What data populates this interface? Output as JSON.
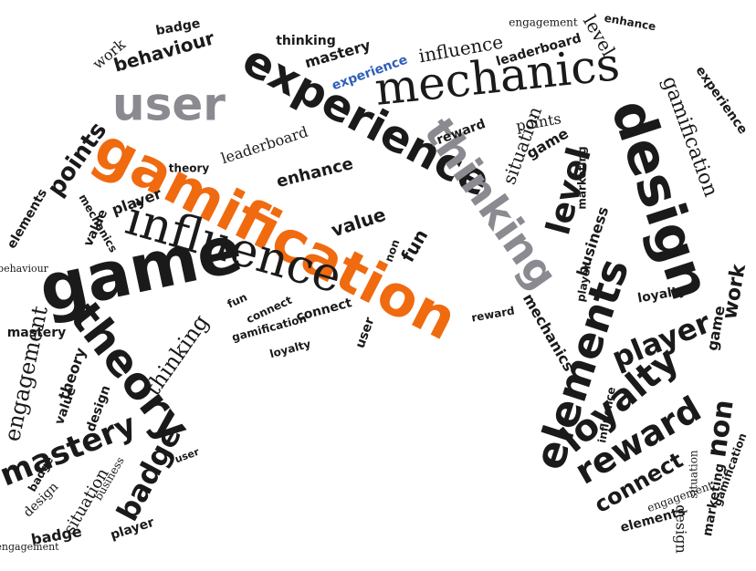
{
  "palette": {
    "background": "#ffffff",
    "dark": "#1a1a1a",
    "gray": "#8a8a90",
    "orange": "#f06a10",
    "blue": "#2e5fb8"
  },
  "words": [
    {
      "id": "gamification-main",
      "text": "gamification",
      "color": "orange"
    },
    {
      "id": "experience-large",
      "text": "experience",
      "color": "dark"
    },
    {
      "id": "mechanics-large",
      "text": "mechanics",
      "color": "dark"
    },
    {
      "id": "user-large",
      "text": "user",
      "color": "gray"
    },
    {
      "id": "game-large",
      "text": "game",
      "color": "dark"
    },
    {
      "id": "influence-large",
      "text": "influence",
      "color": "dark"
    },
    {
      "id": "design-large",
      "text": "design",
      "color": "dark"
    },
    {
      "id": "thinking-large",
      "text": "thinking",
      "color": "gray"
    },
    {
      "id": "theory-large",
      "text": "theory",
      "color": "dark"
    },
    {
      "id": "elements-large",
      "text": "elements",
      "color": "dark"
    },
    {
      "id": "loyalty-large",
      "text": "loyalty",
      "color": "dark"
    },
    {
      "id": "reward-large",
      "text": "reward",
      "color": "dark"
    },
    {
      "id": "player-large",
      "text": "player",
      "color": "dark"
    },
    {
      "id": "level-large",
      "text": "level",
      "color": "dark"
    },
    {
      "id": "mastery-large",
      "text": "mastery",
      "color": "dark"
    },
    {
      "id": "badge-large",
      "text": "badge",
      "color": "dark"
    },
    {
      "id": "engagement-large",
      "text": "engagement",
      "color": "dark"
    },
    {
      "id": "gamification-right",
      "text": "gamification",
      "color": "dark"
    },
    {
      "id": "connect-right",
      "text": "connect",
      "color": "dark"
    },
    {
      "id": "non-right",
      "text": "non",
      "color": "dark"
    },
    {
      "id": "work-right",
      "text": "work",
      "color": "dark"
    },
    {
      "id": "points-left",
      "text": "points",
      "color": "dark"
    },
    {
      "id": "leaderboard-mid",
      "text": "leaderboard",
      "color": "dark"
    },
    {
      "id": "enhance-mid",
      "text": "enhance",
      "color": "dark"
    },
    {
      "id": "value-mid",
      "text": "value",
      "color": "dark"
    },
    {
      "id": "fun-mid",
      "text": "fun",
      "color": "dark"
    },
    {
      "id": "situation-mid",
      "text": "situation",
      "color": "dark"
    },
    {
      "id": "business-right",
      "text": "business",
      "color": "dark"
    },
    {
      "id": "experience-blue",
      "text": "experience",
      "color": "blue"
    },
    {
      "id": "influence-top",
      "text": "influence",
      "color": "dark"
    },
    {
      "id": "behaviour-top",
      "text": "behaviour",
      "color": "dark"
    },
    {
      "id": "badge-top",
      "text": "badge",
      "color": "dark"
    },
    {
      "id": "mastery-top",
      "text": "mastery",
      "color": "dark"
    },
    {
      "id": "thinking-top",
      "text": "thinking",
      "color": "dark"
    },
    {
      "id": "leaderboard-top",
      "text": "leaderboard",
      "color": "dark"
    },
    {
      "id": "engagement-top",
      "text": "engagement",
      "color": "dark"
    },
    {
      "id": "enhance-top",
      "text": "enhance",
      "color": "dark"
    },
    {
      "id": "level-top",
      "text": "level",
      "color": "dark"
    },
    {
      "id": "work-top",
      "text": "work",
      "color": "dark"
    },
    {
      "id": "points-mid",
      "text": "points",
      "color": "dark"
    },
    {
      "id": "game-mid",
      "text": "game",
      "color": "dark"
    },
    {
      "id": "reward-mid",
      "text": "reward",
      "color": "dark"
    },
    {
      "id": "player-mid",
      "text": "player",
      "color": "dark"
    },
    {
      "id": "theory-mid",
      "text": "theory",
      "color": "dark"
    },
    {
      "id": "mechanics-small",
      "text": "mechanics",
      "color": "dark"
    },
    {
      "id": "elements-small",
      "text": "elements",
      "color": "dark"
    },
    {
      "id": "behaviour-left",
      "text": "behaviour",
      "color": "dark"
    },
    {
      "id": "experience-right",
      "text": "experience",
      "color": "dark"
    },
    {
      "id": "marketing-right",
      "text": "marketing",
      "color": "dark"
    },
    {
      "id": "situation-right",
      "text": "situation",
      "color": "dark"
    },
    {
      "id": "influence-right",
      "text": "influence",
      "color": "dark"
    },
    {
      "id": "mechanics-right",
      "text": "mechanics",
      "color": "dark"
    },
    {
      "id": "user-mid",
      "text": "user",
      "color": "dark"
    },
    {
      "id": "thinking-mid",
      "text": "thinking",
      "color": "dark"
    },
    {
      "id": "situation-left",
      "text": "situation",
      "color": "dark"
    },
    {
      "id": "badge-left",
      "text": "badge",
      "color": "dark"
    },
    {
      "id": "player-left",
      "text": "player",
      "color": "dark"
    },
    {
      "id": "design-left",
      "text": "design",
      "color": "dark"
    },
    {
      "id": "value-left",
      "text": "value",
      "color": "dark"
    },
    {
      "id": "theory-left",
      "text": "theory",
      "color": "dark"
    },
    {
      "id": "mastery-mid",
      "text": "mastery",
      "color": "dark"
    },
    {
      "id": "connect-mid",
      "text": "connect",
      "color": "dark"
    },
    {
      "id": "gamification-mid",
      "text": "gamification",
      "color": "dark"
    },
    {
      "id": "loyalty-mid",
      "text": "loyalty",
      "color": "dark"
    },
    {
      "id": "reward-right",
      "text": "reward",
      "color": "dark"
    },
    {
      "id": "elements-right",
      "text": "elements",
      "color": "dark"
    },
    {
      "id": "marketing-low",
      "text": "marketing",
      "color": "dark"
    },
    {
      "id": "design-low",
      "text": "design",
      "color": "dark"
    },
    {
      "id": "non-mid",
      "text": "non",
      "color": "dark"
    },
    {
      "id": "fun-small",
      "text": "fun",
      "color": "dark"
    },
    {
      "id": "connect-small",
      "text": "connect",
      "color": "dark"
    },
    {
      "id": "loyalty-small",
      "text": "loyalty",
      "color": "dark"
    },
    {
      "id": "game-right",
      "text": "game",
      "color": "dark"
    },
    {
      "id": "player-right",
      "text": "player",
      "color": "dark"
    },
    {
      "id": "engagement-right",
      "text": "engagement",
      "color": "dark"
    },
    {
      "id": "gamification-low",
      "text": "gamification",
      "color": "dark"
    },
    {
      "id": "badge-low",
      "text": "badge",
      "color": "dark"
    },
    {
      "id": "design-small",
      "text": "design",
      "color": "dark"
    },
    {
      "id": "value-small",
      "text": "value",
      "color": "dark"
    },
    {
      "id": "business-small",
      "text": "business",
      "color": "dark"
    },
    {
      "id": "engagement-small",
      "text": "engagement",
      "color": "dark"
    },
    {
      "id": "user-small",
      "text": "user",
      "color": "dark"
    }
  ]
}
